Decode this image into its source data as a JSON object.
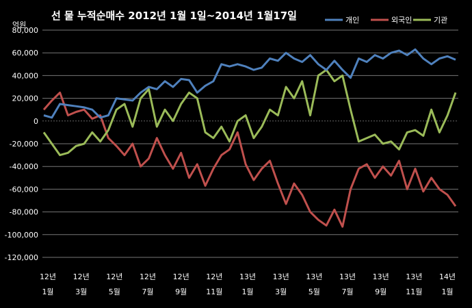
{
  "chart_data": {
    "type": "line",
    "title": "선 물  누적순매수 2012년 1월 1일~2014년 1월17일",
    "unit_label": "억원",
    "ylim": [
      -120000,
      80000
    ],
    "y_ticks": [
      "80,000",
      "60,000",
      "40,000",
      "20,000",
      "0",
      "-20,000",
      "-40,000",
      "-60,000",
      "-80,000",
      "-100,000",
      "-120,000"
    ],
    "y_tick_values": [
      80000,
      60000,
      40000,
      20000,
      0,
      -20000,
      -40000,
      -60000,
      -80000,
      -100000,
      -120000
    ],
    "x_ticks": [
      {
        "year": "12년",
        "month": "1월"
      },
      {
        "year": "12년",
        "month": "3월"
      },
      {
        "year": "12년",
        "month": "5월"
      },
      {
        "year": "12년",
        "month": "7월"
      },
      {
        "year": "12년",
        "month": "9월"
      },
      {
        "year": "12년",
        "month": "11월"
      },
      {
        "year": "13년",
        "month": "1월"
      },
      {
        "year": "13년",
        "month": "3월"
      },
      {
        "year": "13년",
        "month": "5월"
      },
      {
        "year": "13년",
        "month": "7월"
      },
      {
        "year": "13년",
        "month": "9월"
      },
      {
        "year": "13년",
        "month": "11월"
      },
      {
        "year": "14년",
        "month": "1월"
      }
    ],
    "legend_position": "top-right",
    "grid": "horizontal",
    "series": [
      {
        "name": "개인",
        "color": "#4f81bd",
        "values": [
          5000,
          3000,
          15000,
          14000,
          13000,
          12000,
          10000,
          3000,
          5000,
          20000,
          19000,
          18000,
          25000,
          30000,
          28000,
          35000,
          30000,
          37000,
          36000,
          25000,
          31000,
          35000,
          50000,
          48000,
          50000,
          48000,
          45000,
          47000,
          55000,
          53000,
          60000,
          55000,
          52000,
          58000,
          50000,
          45000,
          53000,
          45000,
          38000,
          55000,
          52000,
          58000,
          55000,
          60000,
          62000,
          58000,
          63000,
          55000,
          50000,
          55000,
          57000,
          54000
        ]
      },
      {
        "name": "외국인",
        "color": "#c0504d",
        "values": [
          10000,
          18000,
          25000,
          5000,
          8000,
          10000,
          2000,
          5000,
          -15000,
          -22000,
          -30000,
          -20000,
          -40000,
          -33000,
          -15000,
          -30000,
          -42000,
          -28000,
          -50000,
          -38000,
          -57000,
          -42000,
          -30000,
          -25000,
          -10000,
          -38000,
          -52000,
          -42000,
          -35000,
          -55000,
          -73000,
          -55000,
          -65000,
          -80000,
          -87000,
          -92000,
          -78000,
          -93000,
          -60000,
          -42000,
          -38000,
          -50000,
          -40000,
          -48000,
          -35000,
          -60000,
          -42000,
          -62000,
          -50000,
          -60000,
          -65000,
          -75000
        ]
      },
      {
        "name": "기관",
        "color": "#9bbb59",
        "values": [
          -10000,
          -20000,
          -30000,
          -28000,
          -22000,
          -20000,
          -10000,
          -18000,
          -8000,
          10000,
          15000,
          -5000,
          20000,
          28000,
          -5000,
          10000,
          0,
          15000,
          25000,
          20000,
          -10000,
          -15000,
          -5000,
          -18000,
          0,
          5000,
          -15000,
          -5000,
          10000,
          5000,
          30000,
          20000,
          35000,
          5000,
          40000,
          45000,
          35000,
          40000,
          10000,
          -18000,
          -15000,
          -12000,
          -20000,
          -18000,
          -25000,
          -10000,
          -8000,
          -13000,
          10000,
          -10000,
          5000,
          25000
        ]
      }
    ]
  }
}
